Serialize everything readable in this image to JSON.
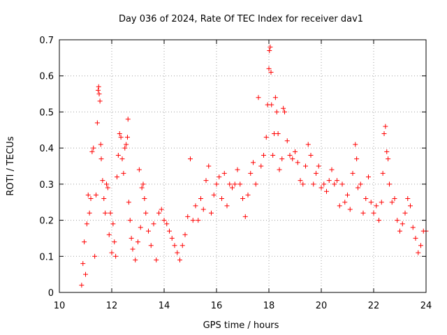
{
  "chart_data": {
    "type": "scatter",
    "title": "Day 036 of 2024, Rate Of TEC Index for receiver dav1",
    "xlabel": "GPS time / hours",
    "ylabel": "ROTI / TECUs",
    "xlim": [
      10,
      24
    ],
    "ylim": [
      0,
      0.7
    ],
    "x_ticks": [
      "10",
      "12",
      "14",
      "16",
      "18",
      "20",
      "22",
      "24"
    ],
    "y_ticks": [
      "0",
      "0.1",
      "0.2",
      "0.3",
      "0.4",
      "0.5",
      "0.6",
      "0.7"
    ],
    "grid": true,
    "marker": "+",
    "marker_color": "#ff0000",
    "series": [
      {
        "points": [
          [
            10.85,
            0.02
          ],
          [
            10.9,
            0.08
          ],
          [
            10.95,
            0.14
          ],
          [
            11.0,
            0.05
          ],
          [
            11.05,
            0.19
          ],
          [
            11.1,
            0.27
          ],
          [
            11.15,
            0.22
          ],
          [
            11.2,
            0.26
          ],
          [
            11.25,
            0.39
          ],
          [
            11.3,
            0.4
          ],
          [
            11.35,
            0.1
          ],
          [
            11.4,
            0.27
          ],
          [
            11.45,
            0.47
          ],
          [
            11.48,
            0.56
          ],
          [
            11.5,
            0.57
          ],
          [
            11.52,
            0.55
          ],
          [
            11.55,
            0.53
          ],
          [
            11.58,
            0.41
          ],
          [
            11.6,
            0.37
          ],
          [
            11.65,
            0.31
          ],
          [
            11.7,
            0.26
          ],
          [
            11.75,
            0.22
          ],
          [
            11.8,
            0.3
          ],
          [
            11.85,
            0.29
          ],
          [
            11.9,
            0.16
          ],
          [
            11.95,
            0.22
          ],
          [
            12.0,
            0.11
          ],
          [
            12.05,
            0.19
          ],
          [
            12.1,
            0.14
          ],
          [
            12.15,
            0.1
          ],
          [
            12.2,
            0.32
          ],
          [
            12.25,
            0.38
          ],
          [
            12.3,
            0.44
          ],
          [
            12.35,
            0.43
          ],
          [
            12.4,
            0.37
          ],
          [
            12.45,
            0.33
          ],
          [
            12.5,
            0.4
          ],
          [
            12.55,
            0.41
          ],
          [
            12.6,
            0.43
          ],
          [
            12.62,
            0.48
          ],
          [
            12.65,
            0.25
          ],
          [
            12.7,
            0.2
          ],
          [
            12.75,
            0.15
          ],
          [
            12.8,
            0.12
          ],
          [
            12.9,
            0.09
          ],
          [
            13.0,
            0.14
          ],
          [
            13.05,
            0.34
          ],
          [
            13.1,
            0.18
          ],
          [
            13.15,
            0.29
          ],
          [
            13.2,
            0.3
          ],
          [
            13.25,
            0.26
          ],
          [
            13.3,
            0.22
          ],
          [
            13.4,
            0.17
          ],
          [
            13.5,
            0.13
          ],
          [
            13.6,
            0.19
          ],
          [
            13.7,
            0.09
          ],
          [
            13.8,
            0.22
          ],
          [
            13.9,
            0.23
          ],
          [
            14.0,
            0.2
          ],
          [
            14.1,
            0.19
          ],
          [
            14.2,
            0.17
          ],
          [
            14.3,
            0.15
          ],
          [
            14.4,
            0.13
          ],
          [
            14.5,
            0.11
          ],
          [
            14.6,
            0.09
          ],
          [
            14.7,
            0.13
          ],
          [
            14.8,
            0.16
          ],
          [
            14.9,
            0.21
          ],
          [
            15.0,
            0.37
          ],
          [
            15.1,
            0.2
          ],
          [
            15.2,
            0.24
          ],
          [
            15.3,
            0.2
          ],
          [
            15.4,
            0.26
          ],
          [
            15.5,
            0.23
          ],
          [
            15.6,
            0.31
          ],
          [
            15.7,
            0.35
          ],
          [
            15.8,
            0.22
          ],
          [
            15.9,
            0.27
          ],
          [
            16.0,
            0.3
          ],
          [
            16.1,
            0.32
          ],
          [
            16.2,
            0.26
          ],
          [
            16.3,
            0.33
          ],
          [
            16.4,
            0.24
          ],
          [
            16.5,
            0.3
          ],
          [
            16.6,
            0.29
          ],
          [
            16.7,
            0.3
          ],
          [
            16.8,
            0.34
          ],
          [
            16.9,
            0.3
          ],
          [
            17.0,
            0.26
          ],
          [
            17.1,
            0.21
          ],
          [
            17.2,
            0.27
          ],
          [
            17.3,
            0.33
          ],
          [
            17.4,
            0.36
          ],
          [
            17.5,
            0.3
          ],
          [
            17.6,
            0.54
          ],
          [
            17.7,
            0.35
          ],
          [
            17.8,
            0.38
          ],
          [
            17.9,
            0.43
          ],
          [
            17.95,
            0.52
          ],
          [
            18.0,
            0.62
          ],
          [
            18.02,
            0.67
          ],
          [
            18.05,
            0.68
          ],
          [
            18.08,
            0.61
          ],
          [
            18.1,
            0.52
          ],
          [
            18.15,
            0.38
          ],
          [
            18.2,
            0.44
          ],
          [
            18.25,
            0.54
          ],
          [
            18.3,
            0.5
          ],
          [
            18.35,
            0.44
          ],
          [
            18.4,
            0.34
          ],
          [
            18.5,
            0.37
          ],
          [
            18.55,
            0.51
          ],
          [
            18.6,
            0.5
          ],
          [
            18.7,
            0.42
          ],
          [
            18.8,
            0.38
          ],
          [
            18.9,
            0.37
          ],
          [
            19.0,
            0.39
          ],
          [
            19.1,
            0.36
          ],
          [
            19.2,
            0.31
          ],
          [
            19.3,
            0.3
          ],
          [
            19.4,
            0.35
          ],
          [
            19.5,
            0.41
          ],
          [
            19.6,
            0.38
          ],
          [
            19.7,
            0.3
          ],
          [
            19.8,
            0.33
          ],
          [
            19.9,
            0.35
          ],
          [
            20.0,
            0.29
          ],
          [
            20.1,
            0.3
          ],
          [
            20.2,
            0.28
          ],
          [
            20.3,
            0.31
          ],
          [
            20.4,
            0.34
          ],
          [
            20.5,
            0.3
          ],
          [
            20.6,
            0.31
          ],
          [
            20.7,
            0.24
          ],
          [
            20.8,
            0.3
          ],
          [
            20.9,
            0.25
          ],
          [
            21.0,
            0.27
          ],
          [
            21.1,
            0.23
          ],
          [
            21.2,
            0.33
          ],
          [
            21.3,
            0.41
          ],
          [
            21.35,
            0.37
          ],
          [
            21.4,
            0.29
          ],
          [
            21.5,
            0.3
          ],
          [
            21.6,
            0.22
          ],
          [
            21.7,
            0.26
          ],
          [
            21.8,
            0.32
          ],
          [
            21.9,
            0.25
          ],
          [
            22.0,
            0.22
          ],
          [
            22.1,
            0.24
          ],
          [
            22.2,
            0.2
          ],
          [
            22.3,
            0.25
          ],
          [
            22.35,
            0.33
          ],
          [
            22.4,
            0.44
          ],
          [
            22.45,
            0.46
          ],
          [
            22.5,
            0.39
          ],
          [
            22.55,
            0.37
          ],
          [
            22.6,
            0.3
          ],
          [
            22.7,
            0.25
          ],
          [
            22.8,
            0.26
          ],
          [
            22.9,
            0.2
          ],
          [
            23.0,
            0.17
          ],
          [
            23.1,
            0.19
          ],
          [
            23.2,
            0.22
          ],
          [
            23.3,
            0.26
          ],
          [
            23.4,
            0.24
          ],
          [
            23.5,
            0.18
          ],
          [
            23.6,
            0.15
          ],
          [
            23.7,
            0.11
          ],
          [
            23.8,
            0.13
          ],
          [
            23.9,
            0.17
          ],
          [
            24.0,
            0.17
          ]
        ]
      }
    ]
  }
}
